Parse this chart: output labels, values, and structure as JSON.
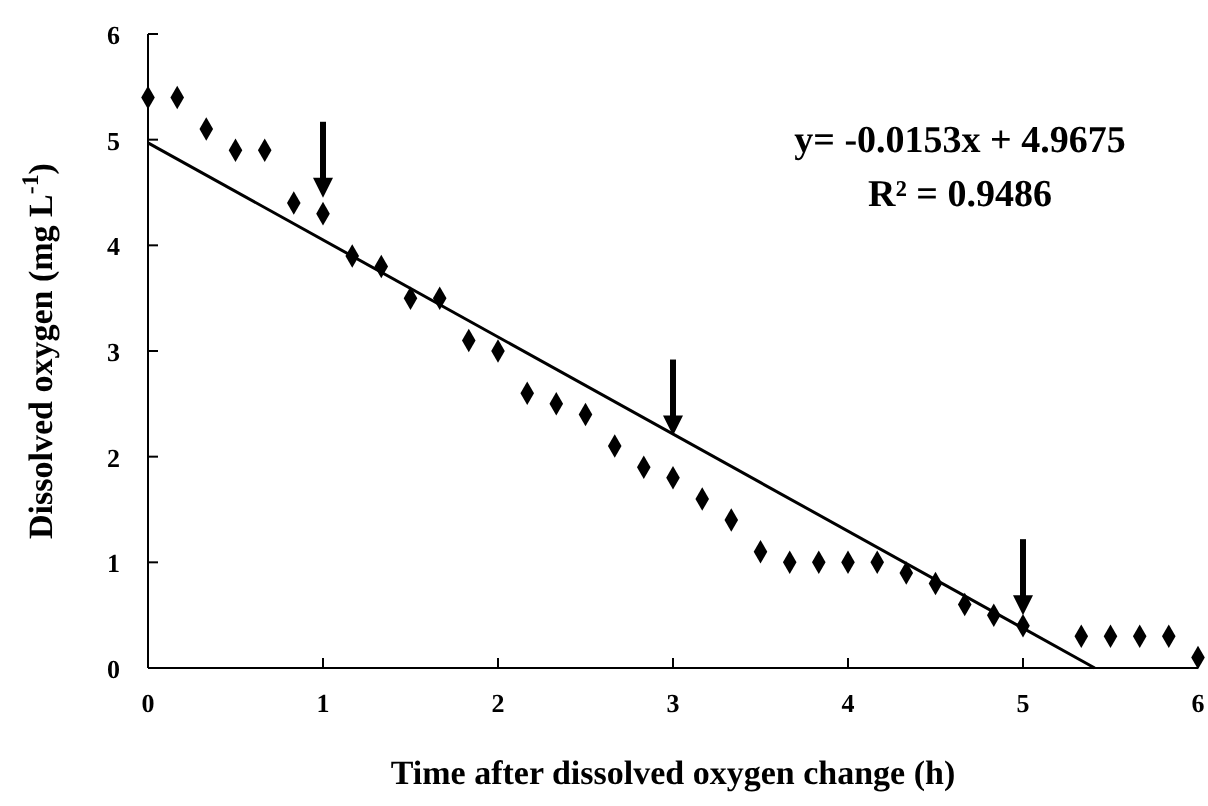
{
  "chart_data": {
    "type": "scatter",
    "xlabel": "Time after dissolved oxygen change (h)",
    "ylabel": "Dissolved oxygen (mg L$^{-1}$)",
    "xlim": [
      0,
      6
    ],
    "ylim": [
      0,
      6
    ],
    "xticks": [
      0,
      1,
      2,
      3,
      4,
      5,
      6
    ],
    "yticks": [
      0,
      1,
      2,
      3,
      4,
      5,
      6
    ],
    "grid": false,
    "annotations": [
      "y= -0.0153x + 4.9675",
      "R² = 0.9486"
    ],
    "series": [
      {
        "color": "#000000",
        "marker": "diamond",
        "x": [
          0,
          0.167,
          0.333,
          0.5,
          0.667,
          0.833,
          1,
          1.167,
          1.333,
          1.5,
          1.667,
          1.833,
          2,
          2.167,
          2.333,
          2.5,
          2.667,
          2.833,
          3,
          3.167,
          3.333,
          3.5,
          3.667,
          3.833,
          4,
          4.167,
          4.333,
          4.5,
          4.667,
          4.833,
          5,
          5.333,
          5.5,
          5.667,
          5.833,
          6
        ],
        "values": [
          5.4,
          5.4,
          5.1,
          4.9,
          4.9,
          4.4,
          4.3,
          3.9,
          3.8,
          3.5,
          3.5,
          3.1,
          3.0,
          2.6,
          2.5,
          2.4,
          2.1,
          1.9,
          1.8,
          1.6,
          1.4,
          1.1,
          1.0,
          1.0,
          1.0,
          1.0,
          0.9,
          0.8,
          0.6,
          0.5,
          0.4,
          0.3,
          0.3,
          0.3,
          0.3,
          0.1
        ]
      },
      {
        "type": "line",
        "color": "#000000",
        "marker": "none",
        "line_style": "solid",
        "x": [
          0,
          5.41
        ],
        "values": [
          4.97,
          0
        ]
      }
    ]
  }
}
